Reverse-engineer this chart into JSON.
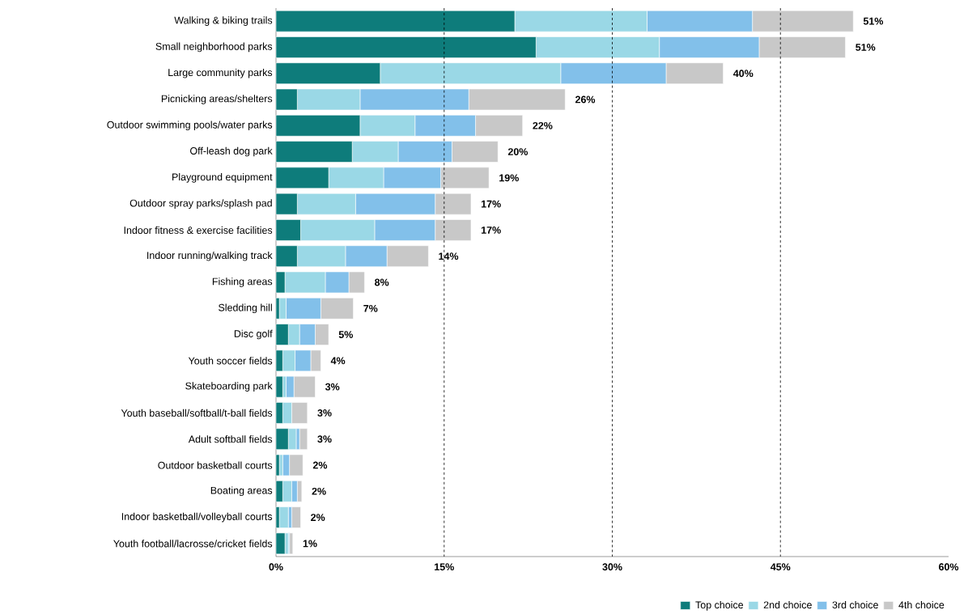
{
  "chart_data": {
    "type": "bar",
    "orientation": "horizontal",
    "stacked": true,
    "categories": [
      "Walking & biking trails",
      "Small neighborhood parks",
      "Large community parks",
      "Picnicking areas/shelters",
      "Outdoor swimming pools/water parks",
      "Off-leash dog park",
      "Playground equipment",
      "Outdoor spray parks/splash pad",
      "Indoor fitness & exercise facilities",
      "Indoor running/walking track",
      "Fishing areas",
      "Sledding hill",
      "Disc golf",
      "Youth soccer fields",
      "Skateboarding park",
      "Youth baseball/softball/t-ball fields",
      "Adult softball fields",
      "Outdoor basketball courts",
      "Boating areas",
      "Indoor basketball/volleyball courts",
      "Youth football/lacrosse/cricket fields"
    ],
    "series": [
      {
        "name": "Top choice",
        "color": "#0e7c7b",
        "values": [
          21.3,
          23.2,
          9.3,
          1.9,
          7.5,
          6.8,
          4.7,
          1.9,
          2.2,
          1.9,
          0.8,
          0.3,
          1.1,
          0.6,
          0.6,
          0.6,
          1.1,
          0.3,
          0.6,
          0.3,
          0.8
        ]
      },
      {
        "name": "2nd choice",
        "color": "#9ad8e6",
        "values": [
          11.8,
          11.0,
          16.1,
          5.6,
          4.9,
          4.1,
          4.9,
          5.2,
          6.6,
          4.3,
          3.6,
          0.6,
          1.0,
          1.1,
          0.3,
          0.8,
          0.7,
          0.3,
          0.8,
          0.8,
          0.3
        ]
      },
      {
        "name": "3rd choice",
        "color": "#82c0ea",
        "values": [
          9.4,
          8.9,
          9.4,
          9.7,
          5.4,
          4.8,
          5.1,
          7.1,
          5.4,
          3.7,
          2.1,
          3.1,
          1.4,
          1.4,
          0.7,
          0,
          0.3,
          0.6,
          0.5,
          0.3,
          0.1
        ]
      },
      {
        "name": "4th choice",
        "color": "#c8c8c8",
        "values": [
          9.0,
          7.7,
          5.1,
          8.6,
          4.2,
          4.1,
          4.3,
          3.2,
          3.2,
          3.7,
          1.4,
          2.9,
          1.2,
          0.9,
          1.9,
          1.4,
          0.7,
          1.2,
          0.4,
          0.8,
          0.3
        ]
      }
    ],
    "totals": [
      "51%",
      "51%",
      "40%",
      "26%",
      "22%",
      "20%",
      "19%",
      "17%",
      "17%",
      "14%",
      "8%",
      "7%",
      "5%",
      "4%",
      "3%",
      "3%",
      "3%",
      "2%",
      "2%",
      "2%",
      "1%"
    ],
    "xlim": [
      0,
      60
    ],
    "xticks": [
      {
        "value": 0,
        "label": "0%"
      },
      {
        "value": 15,
        "label": "15%"
      },
      {
        "value": 30,
        "label": "30%"
      },
      {
        "value": 45,
        "label": "45%"
      },
      {
        "value": 60,
        "label": "60%"
      }
    ],
    "grid": "x",
    "legend": "bottom"
  }
}
